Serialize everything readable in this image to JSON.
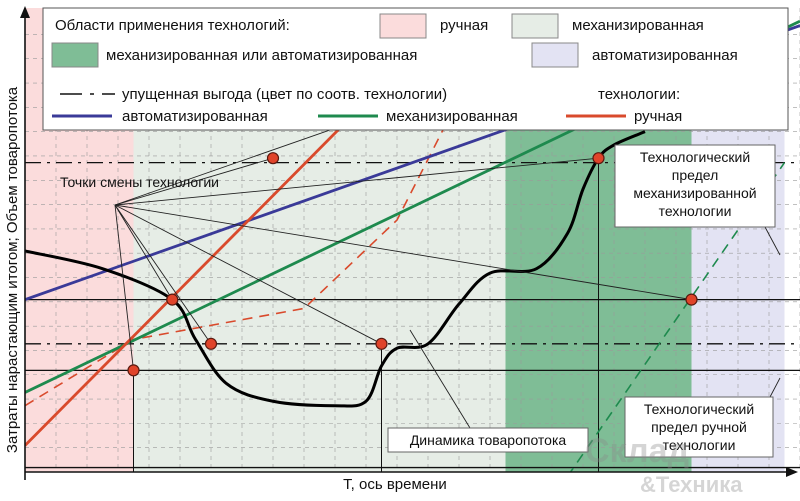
{
  "chart_data": {
    "type": "line",
    "xlabel": "T, ось времени",
    "ylabel": "Затраты нарастающим итогом; Объем товаропотока",
    "legend": {
      "areas_title": "Области применения технологий:",
      "areas": [
        {
          "label": "ручная",
          "color": "#fbdcdc"
        },
        {
          "label": "механизированная",
          "color": "#e6ede6"
        },
        {
          "label": "механизированная или автоматизированная",
          "color": "#7fbd96"
        },
        {
          "label": "автоматизированная",
          "color": "#e3e3f3"
        }
      ],
      "lost_profit": "упущенная выгода (цвет по соотв. технологии)",
      "tech_title": "технологии:",
      "series_labels": [
        "автоматизированная",
        "механизированная",
        "ручная"
      ]
    },
    "x_range": [
      0,
      100
    ],
    "y_range": [
      0,
      100
    ],
    "regions": [
      {
        "name": "ручная",
        "x": [
          0,
          14
        ],
        "color": "#fbdcdc"
      },
      {
        "name": "механизированная",
        "x": [
          14,
          62
        ],
        "color": "#e6ede6"
      },
      {
        "name": "механизированная или автоматизированная",
        "x": [
          62,
          86
        ],
        "color": "#7fbd96"
      },
      {
        "name": "автоматизированная",
        "x": [
          86,
          98
        ],
        "color": "#e3e3f3"
      }
    ],
    "series": [
      {
        "name": "автоматизированная",
        "color": "#3a3a98",
        "points": [
          [
            0,
            39
          ],
          [
            100,
            101
          ]
        ]
      },
      {
        "name": "механизированная",
        "color": "#1e8a4e",
        "points": [
          [
            0,
            18
          ],
          [
            100,
            102
          ]
        ]
      },
      {
        "name": "ручная",
        "color": "#d94a2c",
        "points": [
          [
            0,
            6
          ],
          [
            60,
            112
          ]
        ]
      },
      {
        "name": "Динамика товаропотока",
        "color": "#000000",
        "points": [
          [
            0,
            50
          ],
          [
            10,
            46
          ],
          [
            19,
            39
          ],
          [
            22,
            30
          ],
          [
            26,
            20
          ],
          [
            32,
            16
          ],
          [
            40,
            15
          ],
          [
            44,
            16
          ],
          [
            46,
            24
          ],
          [
            48,
            28
          ],
          [
            52,
            29
          ],
          [
            56,
            38
          ],
          [
            60,
            45
          ],
          [
            66,
            46
          ],
          [
            70,
            54
          ],
          [
            72,
            64
          ],
          [
            74,
            71
          ],
          [
            76,
            74
          ],
          [
            80,
            77
          ]
        ]
      }
    ],
    "lost_profit_lines": [
      {
        "color": "#d94a2c",
        "points": [
          [
            0,
            15
          ],
          [
            14,
            30
          ],
          [
            36,
            37
          ],
          [
            48,
            57
          ],
          [
            64,
            112
          ]
        ]
      },
      {
        "color": "#1e8a4e",
        "points": [
          [
            70,
            -1
          ],
          [
            98,
            70
          ]
        ]
      }
    ],
    "hlines": [
      {
        "y": 70,
        "style": "dashdot"
      },
      {
        "y": 39,
        "style": "solid"
      },
      {
        "y": 29,
        "style": "dashdot"
      },
      {
        "y": 23,
        "style": "solid"
      },
      {
        "y": 1,
        "style": "solid"
      }
    ],
    "vlines": [
      {
        "x": 14,
        "y": [
          0,
          23
        ]
      },
      {
        "x": 46,
        "y": [
          0,
          29
        ]
      },
      {
        "x": 74,
        "y": [
          0,
          71
        ]
      }
    ],
    "switch_points": [
      [
        14,
        23
      ],
      [
        19,
        39
      ],
      [
        24,
        29
      ],
      [
        32,
        71
      ],
      [
        46,
        29
      ],
      [
        60,
        90
      ],
      [
        74,
        71
      ],
      [
        86,
        39
      ]
    ],
    "annotations": {
      "switch_points": "Точки смены технологии",
      "flow_dynamics": "Динамика товаропотока",
      "limit_mech": [
        "Технологический",
        "предел",
        "механизированной",
        "технологии"
      ],
      "limit_manual": [
        "Технологический",
        "предел ручной",
        "технологии"
      ]
    },
    "watermark": [
      "Склад",
      "&Техника"
    ],
    "grid": true
  }
}
